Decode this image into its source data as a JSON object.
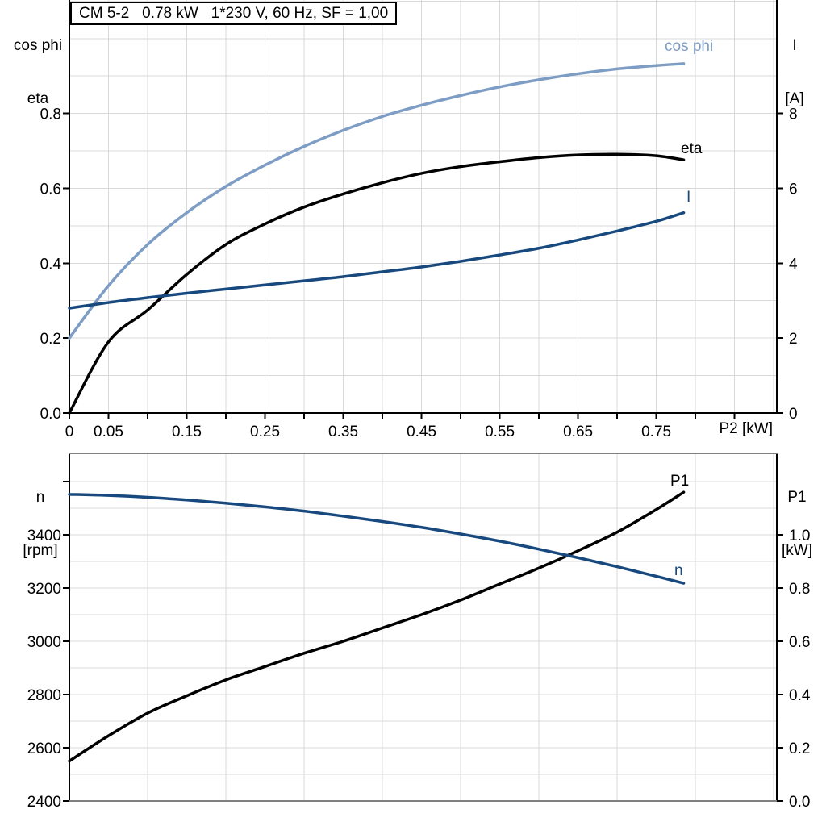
{
  "title": "CM 5-2   0.78 kW   1*230 V, 60 Hz, SF = 1,00",
  "colors": {
    "cos_phi_blue": "#7D9DC5",
    "dark_blue": "#17497E",
    "black": "#000000",
    "grid": "#D9D9D9",
    "frame_gray": "#808080"
  },
  "top_chart": {
    "y_left_title_line1": "cos phi",
    "y_left_title_line2": "eta",
    "y_right_title_line1": "I",
    "y_right_title_line2": "[A]",
    "x_title": "P2 [kW]",
    "curve_labels": {
      "cos_phi": "cos phi",
      "eta": "eta",
      "current": "I"
    }
  },
  "bottom_chart": {
    "y_left_title_line1": "n",
    "y_left_title_line2": "[rpm]",
    "y_right_title_line1": "P1",
    "y_right_title_line2": "[kW]",
    "curve_labels": {
      "p1": "P1",
      "n": "n"
    }
  },
  "chart_data": [
    {
      "type": "line",
      "title": "Motor electrical curves vs output power P2",
      "x_label": "P2 [kW]",
      "x_range": [
        0,
        0.904
      ],
      "x": [
        0,
        0.05,
        0.1,
        0.15,
        0.2,
        0.25,
        0.3,
        0.35,
        0.4,
        0.45,
        0.5,
        0.55,
        0.6,
        0.65,
        0.7,
        0.75,
        0.785
      ],
      "x_tick_labels": [
        {
          "v": 0,
          "t": "0"
        },
        {
          "v": 0.05,
          "t": "0.05"
        },
        {
          "v": 0.15,
          "t": "0.15"
        },
        {
          "v": 0.25,
          "t": "0.25"
        },
        {
          "v": 0.35,
          "t": "0.35"
        },
        {
          "v": 0.45,
          "t": "0.45"
        },
        {
          "v": 0.55,
          "t": "0.55"
        },
        {
          "v": 0.65,
          "t": "0.65"
        },
        {
          "v": 0.75,
          "t": "0.75"
        }
      ],
      "y_left_label": "cos phi / eta",
      "y_left_range": [
        0,
        1.103
      ],
      "y_left_ticks": [
        {
          "v": 0.0,
          "t": "0.0"
        },
        {
          "v": 0.2,
          "t": "0.2"
        },
        {
          "v": 0.4,
          "t": "0.4"
        },
        {
          "v": 0.6,
          "t": "0.6"
        },
        {
          "v": 0.8,
          "t": "0.8"
        }
      ],
      "y_right_label": "I [A]",
      "y_right_range": [
        0,
        11.03
      ],
      "y_right_ticks": [
        {
          "v": 0,
          "t": "0"
        },
        {
          "v": 2,
          "t": "2"
        },
        {
          "v": 4,
          "t": "4"
        },
        {
          "v": 6,
          "t": "6"
        },
        {
          "v": 8,
          "t": "8"
        }
      ],
      "grid": "on",
      "legend_position": "inline-labels",
      "series": [
        {
          "name": "cos phi",
          "axis": "left",
          "color_key": "cos_phi_blue",
          "values": [
            0.2,
            0.34,
            0.45,
            0.535,
            0.605,
            0.662,
            0.712,
            0.755,
            0.792,
            0.822,
            0.848,
            0.871,
            0.89,
            0.906,
            0.919,
            0.928,
            0.933
          ]
        },
        {
          "name": "eta",
          "axis": "left",
          "color_key": "black",
          "values": [
            0.0,
            0.19,
            0.275,
            0.37,
            0.45,
            0.505,
            0.55,
            0.585,
            0.615,
            0.64,
            0.658,
            0.671,
            0.682,
            0.689,
            0.691,
            0.687,
            0.676
          ]
        },
        {
          "name": "I",
          "axis": "right",
          "color_key": "dark_blue",
          "values": [
            2.8,
            2.95,
            3.08,
            3.2,
            3.31,
            3.42,
            3.53,
            3.64,
            3.77,
            3.9,
            4.05,
            4.22,
            4.4,
            4.62,
            4.86,
            5.12,
            5.35
          ]
        }
      ]
    },
    {
      "type": "line",
      "title": "Speed n and input power P1 vs output power P2",
      "x_label": "",
      "x_range": [
        0,
        0.904
      ],
      "x": [
        0,
        0.05,
        0.1,
        0.15,
        0.2,
        0.25,
        0.3,
        0.35,
        0.4,
        0.45,
        0.5,
        0.55,
        0.6,
        0.65,
        0.7,
        0.75,
        0.785
      ],
      "x_tick_labels": [],
      "y_left_label": "n [rpm]",
      "y_left_range": [
        2400,
        3706
      ],
      "y_left_ticks": [
        {
          "v": 3600,
          "t": ""
        },
        {
          "v": 3400,
          "t": "3400"
        },
        {
          "v": 3200,
          "t": "3200"
        },
        {
          "v": 3000,
          "t": "3000"
        },
        {
          "v": 2800,
          "t": "2800"
        },
        {
          "v": 2600,
          "t": "2600"
        },
        {
          "v": 2400,
          "t": "2400"
        }
      ],
      "y_right_label": "P1 [kW]",
      "y_right_range": [
        0,
        1.306
      ],
      "y_right_ticks": [
        {
          "v": 1.0,
          "t": "1.0"
        },
        {
          "v": 0.8,
          "t": "0.8"
        },
        {
          "v": 0.6,
          "t": "0.6"
        },
        {
          "v": 0.4,
          "t": "0.4"
        },
        {
          "v": 0.2,
          "t": "0.2"
        },
        {
          "v": 0.0,
          "t": "0.0"
        }
      ],
      "grid": "on",
      "legend_position": "inline-labels",
      "series": [
        {
          "name": "P1",
          "axis": "right",
          "color_key": "black",
          "values": [
            0.15,
            0.245,
            0.33,
            0.395,
            0.455,
            0.505,
            0.555,
            0.6,
            0.65,
            0.7,
            0.755,
            0.815,
            0.875,
            0.94,
            1.01,
            1.095,
            1.16
          ]
        },
        {
          "name": "n",
          "axis": "left",
          "color_key": "dark_blue",
          "values": [
            3552,
            3548,
            3541,
            3531,
            3519,
            3505,
            3489,
            3470,
            3450,
            3428,
            3403,
            3376,
            3346,
            3314,
            3280,
            3244,
            3218
          ]
        }
      ]
    }
  ]
}
